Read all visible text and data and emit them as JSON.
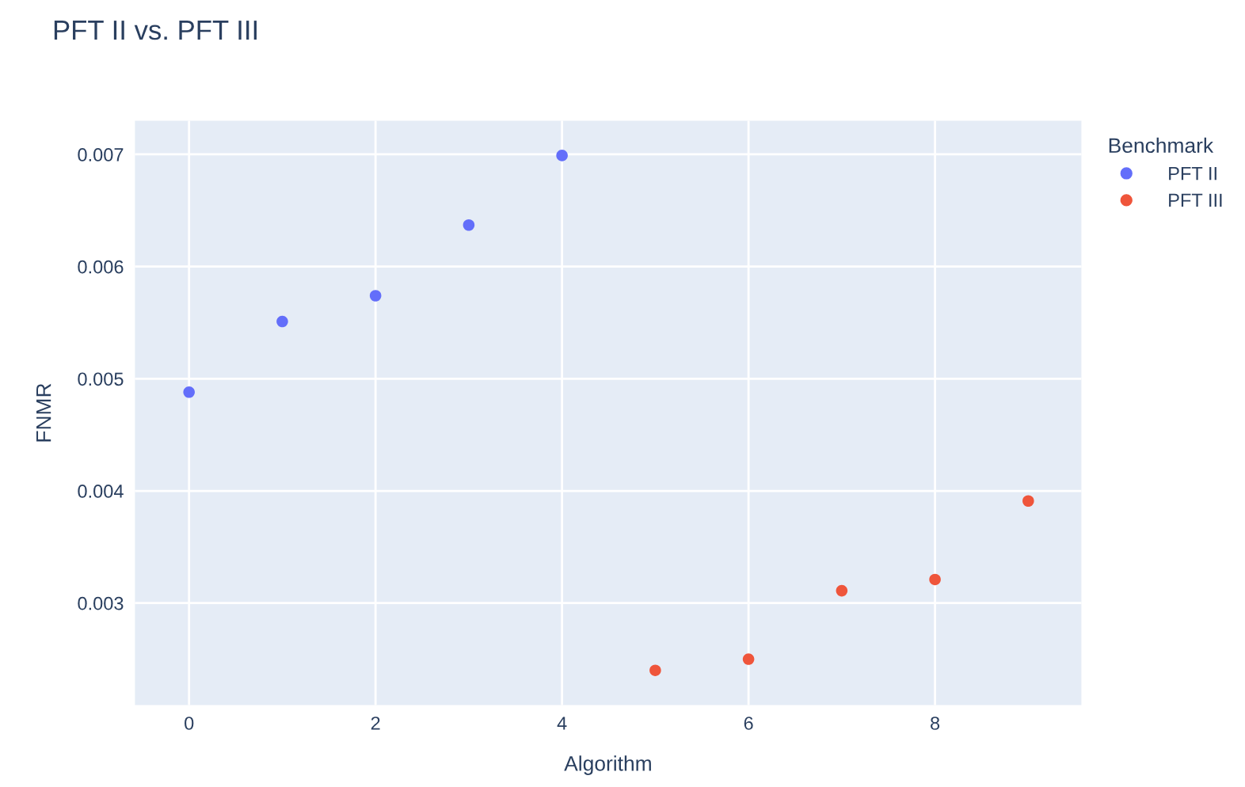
{
  "chart_data": {
    "type": "scatter",
    "title": "PFT II vs. PFT III",
    "xlabel": "Algorithm",
    "ylabel": "FNMR",
    "legend_title": "Benchmark",
    "series": [
      {
        "name": "PFT II",
        "color": "#636efa",
        "x": [
          0,
          1,
          2,
          3,
          4
        ],
        "values": [
          0.00488,
          0.00551,
          0.00574,
          0.00637,
          0.00699
        ]
      },
      {
        "name": "PFT III",
        "color": "#ef553b",
        "x": [
          5,
          6,
          7,
          8,
          9
        ],
        "values": [
          0.0024,
          0.0025,
          0.00311,
          0.00321,
          0.00391
        ]
      }
    ],
    "xlim": [
      -0.58,
      9.57
    ],
    "xticks": [
      0,
      2,
      4,
      6,
      8
    ],
    "ylim": [
      0.00209,
      0.0073
    ],
    "yticks": [
      0.003,
      0.004,
      0.005,
      0.006,
      0.007
    ],
    "grid": true,
    "legend": "top right",
    "marker": "circle"
  }
}
